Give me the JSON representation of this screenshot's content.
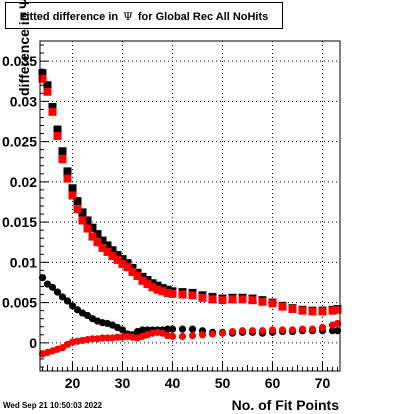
{
  "chart_data": {
    "type": "scatter",
    "title_parts": [
      "Fitted difference in",
      "Ψ",
      "for Global Rec All NoHits"
    ],
    "xlabel": "No. of Fit Points",
    "ylabel": "difference in Ψ",
    "xlim": [
      13.5,
      73.5
    ],
    "ylim": [
      -0.0035,
      0.0375
    ],
    "grid": true,
    "x_ticks": [
      20,
      30,
      40,
      50,
      60,
      70
    ],
    "y_ticks": [
      0,
      0.005,
      0.01,
      0.015,
      0.02,
      0.025,
      0.03,
      0.035
    ],
    "x_tick_labels": [
      "20",
      "30",
      "40",
      "50",
      "60",
      "70"
    ],
    "y_tick_labels": [
      "0",
      "0.005",
      "0.01",
      "0.015",
      "0.02",
      "0.025",
      "0.03",
      "0.035"
    ],
    "series": [
      {
        "color": "#000000",
        "marker": "square",
        "x": [
          14,
          15,
          16,
          17,
          18,
          19,
          20,
          21,
          22,
          23,
          24,
          25,
          26,
          27,
          28,
          29,
          30,
          31,
          32,
          33,
          34,
          35,
          36,
          37,
          38,
          39,
          40,
          42,
          44,
          46,
          48,
          50,
          52,
          54,
          56,
          58,
          60,
          62,
          64,
          66,
          68,
          70,
          72,
          73
        ],
        "y": [
          0.0335,
          0.032,
          0.0293,
          0.0265,
          0.0238,
          0.0213,
          0.0192,
          0.0176,
          0.0162,
          0.0152,
          0.0143,
          0.0135,
          0.0127,
          0.0121,
          0.0115,
          0.0109,
          0.0104,
          0.0099,
          0.0093,
          0.0087,
          0.0082,
          0.0078,
          0.0074,
          0.0071,
          0.0068,
          0.0066,
          0.0064,
          0.0063,
          0.0062,
          0.0059,
          0.0057,
          0.0055,
          0.0056,
          0.0056,
          0.0055,
          0.0053,
          0.005,
          0.0046,
          0.0043,
          0.0041,
          0.004,
          0.004,
          0.0041,
          0.0042
        ]
      },
      {
        "color": "#ff0000",
        "marker": "square",
        "x": [
          14,
          15,
          16,
          17,
          18,
          19,
          20,
          21,
          22,
          23,
          24,
          25,
          26,
          27,
          28,
          29,
          30,
          31,
          32,
          33,
          34,
          35,
          36,
          37,
          38,
          39,
          40,
          42,
          44,
          46,
          48,
          50,
          52,
          54,
          56,
          58,
          60,
          62,
          64,
          66,
          68,
          70,
          72,
          73
        ],
        "y": [
          0.0328,
          0.0312,
          0.0287,
          0.0257,
          0.0228,
          0.0204,
          0.0183,
          0.0166,
          0.0152,
          0.0142,
          0.0132,
          0.0125,
          0.0118,
          0.0113,
          0.0108,
          0.0103,
          0.0098,
          0.0094,
          0.0088,
          0.0083,
          0.0077,
          0.0073,
          0.0069,
          0.0066,
          0.0064,
          0.0062,
          0.0061,
          0.006,
          0.0059,
          0.0056,
          0.0054,
          0.0053,
          0.0054,
          0.0054,
          0.0053,
          0.0051,
          0.0049,
          0.0045,
          0.0042,
          0.004,
          0.0039,
          0.0039,
          0.004,
          0.0041
        ]
      },
      {
        "color": "#000000",
        "marker": "circle",
        "x": [
          14,
          15,
          16,
          17,
          18,
          19,
          20,
          21,
          22,
          23,
          24,
          25,
          26,
          27,
          28,
          29,
          30,
          31,
          32,
          33,
          34,
          35,
          36,
          37,
          38,
          39,
          40,
          42,
          44,
          46,
          48,
          50,
          52,
          54,
          56,
          58,
          60,
          62,
          64,
          66,
          68,
          70,
          72,
          73
        ],
        "y": [
          0.0081,
          0.0073,
          0.0069,
          0.0063,
          0.0057,
          0.0052,
          0.0046,
          0.0041,
          0.0037,
          0.0034,
          0.003,
          0.0027,
          0.0025,
          0.0024,
          0.0022,
          0.0019,
          0.0016,
          0.0011,
          0.001,
          0.0014,
          0.0016,
          0.0016,
          0.0016,
          0.0016,
          0.0016,
          0.0017,
          0.0017,
          0.0017,
          0.0017,
          0.0015,
          0.0013,
          0.0013,
          0.0012,
          0.0013,
          0.0013,
          0.0012,
          0.0013,
          0.0014,
          0.0014,
          0.0015,
          0.0015,
          0.0015,
          0.0015,
          0.0015
        ]
      },
      {
        "color": "#ff0000",
        "marker": "circle",
        "x": [
          14,
          15,
          16,
          17,
          18,
          19,
          20,
          21,
          22,
          23,
          24,
          25,
          26,
          27,
          28,
          29,
          30,
          31,
          32,
          33,
          34,
          35,
          36,
          37,
          38,
          39,
          40,
          42,
          44,
          46,
          48,
          50,
          52,
          54,
          56,
          58,
          60,
          62,
          64,
          66,
          68,
          70,
          72,
          73
        ],
        "y": [
          -0.0014,
          -0.0012,
          -0.001,
          -0.0008,
          -0.0006,
          -0.0002,
          0.0001,
          0.0002,
          0.0003,
          0.0004,
          0.0005,
          0.0005,
          0.0006,
          0.0006,
          0.0006,
          0.0007,
          0.0007,
          0.0008,
          0.0007,
          0.0006,
          0.0008,
          0.001,
          0.0012,
          0.0013,
          0.0012,
          0.0009,
          0.0008,
          0.0008,
          0.0009,
          0.001,
          0.0011,
          0.0012,
          0.0014,
          0.0015,
          0.0015,
          0.0015,
          0.0016,
          0.0016,
          0.0016,
          0.0017,
          0.0017,
          0.0019,
          0.0022,
          0.0024
        ]
      }
    ]
  },
  "footer": {
    "timestamp": "Wed Sep 21 10:50:03 2022"
  }
}
